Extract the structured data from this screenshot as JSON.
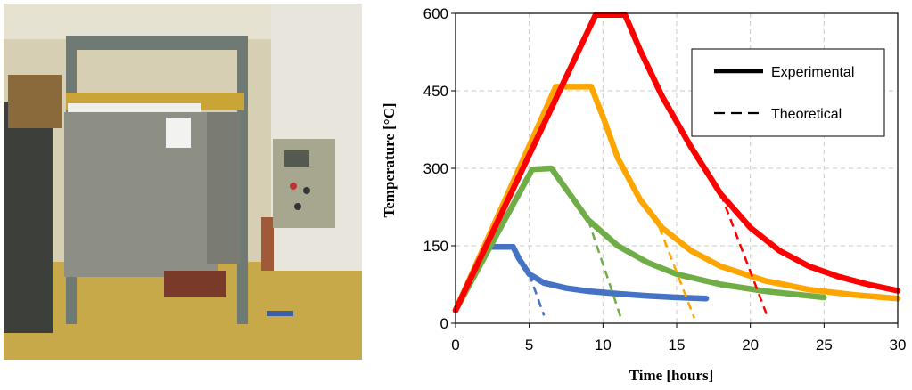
{
  "photo": {
    "alt": "furnace-photo",
    "colors": {
      "wall": "#d6cfb3",
      "furnace": "#8d8e84",
      "frame": "#6f7a75",
      "panel": "#a6a78e",
      "floor": "#c8a94a",
      "insulation": "#c9a437"
    }
  },
  "chart_data": {
    "type": "line",
    "title": "",
    "xlabel": "Time  [hours]",
    "ylabel": "Temperature  [°C]",
    "xlim": [
      0,
      30
    ],
    "ylim": [
      0,
      600
    ],
    "xticks": [
      "0",
      "5",
      "10",
      "15",
      "20",
      "25",
      "30"
    ],
    "yticks": [
      "0",
      "150",
      "300",
      "450",
      "600"
    ],
    "grid": true,
    "legend_position": "top-right",
    "legend": [
      {
        "label": "Experimental",
        "style": "solid"
      },
      {
        "label": "Theoretical",
        "style": "dashed"
      }
    ],
    "series": [
      {
        "color": "#4472c4",
        "experimental": {
          "x": [
            0,
            2.3,
            3.9,
            4.3,
            5.0,
            6.0,
            7.5,
            9.0,
            11.0,
            13.0,
            15.0,
            17.0
          ],
          "y": [
            25,
            148,
            148,
            125,
            95,
            78,
            68,
            62,
            57,
            53,
            50,
            48
          ]
        },
        "theoretical": {
          "x": [
            5.0,
            6.0
          ],
          "y": [
            95,
            15
          ]
        }
      },
      {
        "color": "#70ad47",
        "experimental": {
          "x": [
            0,
            5.2,
            6.5,
            7.5,
            9.0,
            11.0,
            13.0,
            15.0,
            18.0,
            21.0,
            25.0
          ],
          "y": [
            25,
            298,
            300,
            260,
            200,
            150,
            118,
            95,
            75,
            62,
            50
          ]
        },
        "theoretical": {
          "x": [
            9.0,
            11.2
          ],
          "y": [
            200,
            12
          ]
        }
      },
      {
        "color": "#ffa500",
        "experimental": {
          "x": [
            0,
            6.8,
            9.2,
            10.0,
            11.0,
            12.5,
            14.0,
            16.0,
            18.0,
            21.0,
            24.0,
            27.0,
            30.0
          ],
          "y": [
            25,
            458,
            458,
            400,
            320,
            240,
            185,
            140,
            110,
            82,
            65,
            55,
            48
          ]
        },
        "theoretical": {
          "x": [
            13.5,
            16.2
          ],
          "y": [
            210,
            10
          ]
        }
      },
      {
        "color": "#ff0000",
        "experimental": {
          "x": [
            0,
            9.5,
            11.5,
            12.5,
            14.0,
            16.0,
            18.0,
            20.0,
            22.0,
            24.0,
            26.0,
            28.0,
            30.0
          ],
          "y": [
            25,
            597,
            597,
            530,
            440,
            340,
            250,
            185,
            140,
            110,
            90,
            75,
            63
          ]
        },
        "theoretical": {
          "x": [
            18.0,
            21.2
          ],
          "y": [
            250,
            10
          ]
        }
      }
    ]
  }
}
